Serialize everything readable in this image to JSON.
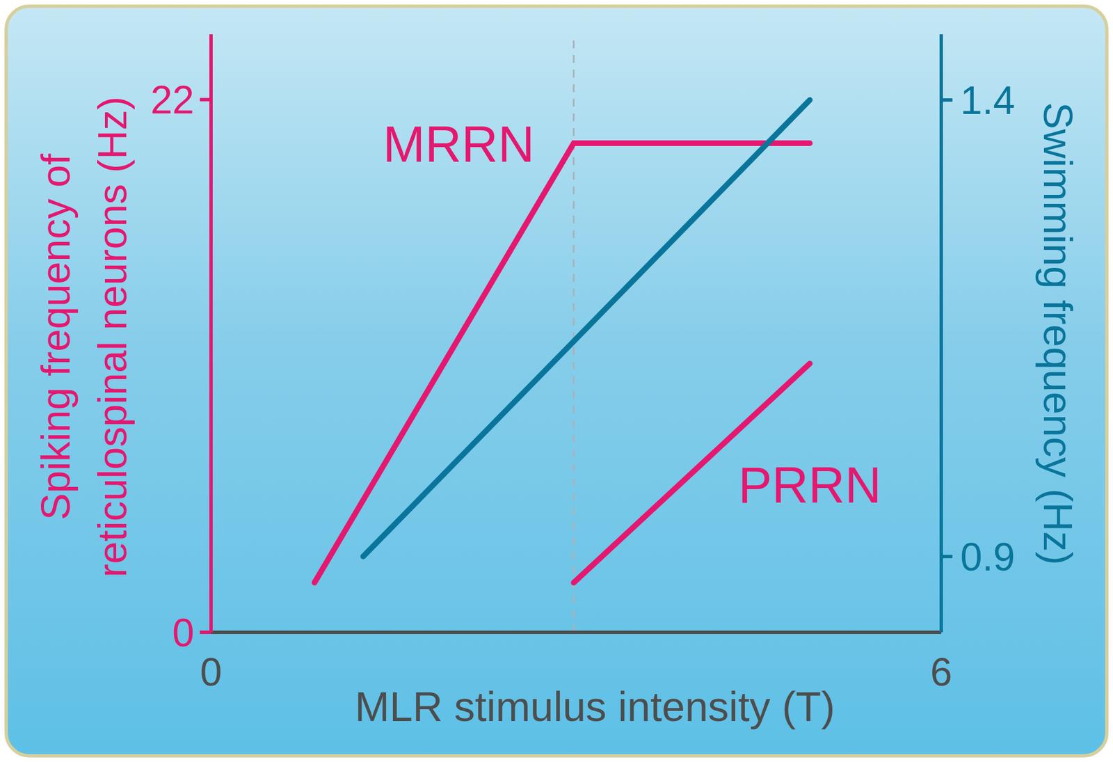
{
  "chart_data": {
    "type": "line",
    "xlabel": "MLR stimulus intensity (T)",
    "ylabel": "Spiking frequency of reticulospinal neurons (Hz)",
    "y2label": "Swimming frequency (Hz)",
    "xlim": [
      0,
      6
    ],
    "xticks": [
      0,
      6
    ],
    "ylim": [
      0,
      24.7
    ],
    "yticks": [
      0,
      22
    ],
    "y2lim": [
      0.817,
      1.472
    ],
    "y2ticks": [
      0.9,
      1.4
    ],
    "vline_x": 2.98,
    "series": [
      {
        "name": "MRRN",
        "color": "#e5176f",
        "x": [
          0.85,
          2.98,
          4.92
        ],
        "values": [
          2.05,
          20.2,
          20.2
        ]
      },
      {
        "name": "PRRN",
        "color": "#e5176f",
        "x": [
          2.98,
          4.92
        ],
        "values": [
          2.05,
          11.1
        ]
      },
      {
        "name": "Swimming frequency (Hz)",
        "color": "#0a759b",
        "axis": "y2",
        "x": [
          1.25,
          4.92
        ],
        "values": [
          0.9,
          1.4
        ]
      }
    ]
  }
}
